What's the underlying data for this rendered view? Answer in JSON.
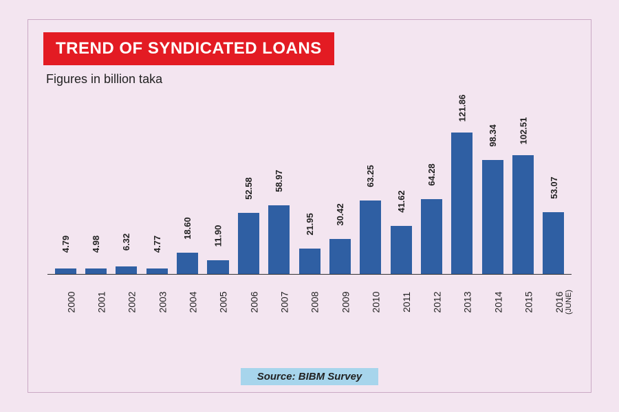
{
  "title": "TREND OF SYNDICATED LOANS",
  "subtitle": "Figures in billion taka",
  "source_label": "Source: BIBM Survey",
  "chart": {
    "type": "bar",
    "background_color": "#f3e5f0",
    "border_color": "#c9a8c4",
    "bar_color": "#2f5fa3",
    "title_bg": "#e31b23",
    "title_color": "#ffffff",
    "source_bg": "#a7d5ec",
    "axis_color": "#333333",
    "value_fontsize": 13,
    "xlabel_fontsize": 14,
    "title_fontsize": 24,
    "subtitle_fontsize": 18,
    "ylim": [
      0,
      130
    ],
    "bar_width_pct": 70,
    "categories": [
      "2000",
      "2001",
      "2002",
      "2003",
      "2004",
      "2005",
      "2006",
      "2007",
      "2008",
      "2009",
      "2010",
      "2011",
      "2012",
      "2013",
      "2014",
      "2015",
      "2016"
    ],
    "category_sub": {
      "2016": "(JUNE)"
    },
    "values": [
      4.79,
      4.98,
      6.32,
      4.77,
      18.6,
      11.9,
      52.58,
      58.97,
      21.95,
      30.42,
      63.25,
      41.62,
      64.28,
      121.86,
      98.34,
      102.51,
      53.07
    ],
    "value_labels": [
      "4.79",
      "4.98",
      "6.32",
      "4.77",
      "18.60",
      "11.90",
      "52.58",
      "58.97",
      "21.95",
      "30.42",
      "63.25",
      "41.62",
      "64.28",
      "121.86",
      "98.34",
      "102.51",
      "53.07"
    ]
  }
}
